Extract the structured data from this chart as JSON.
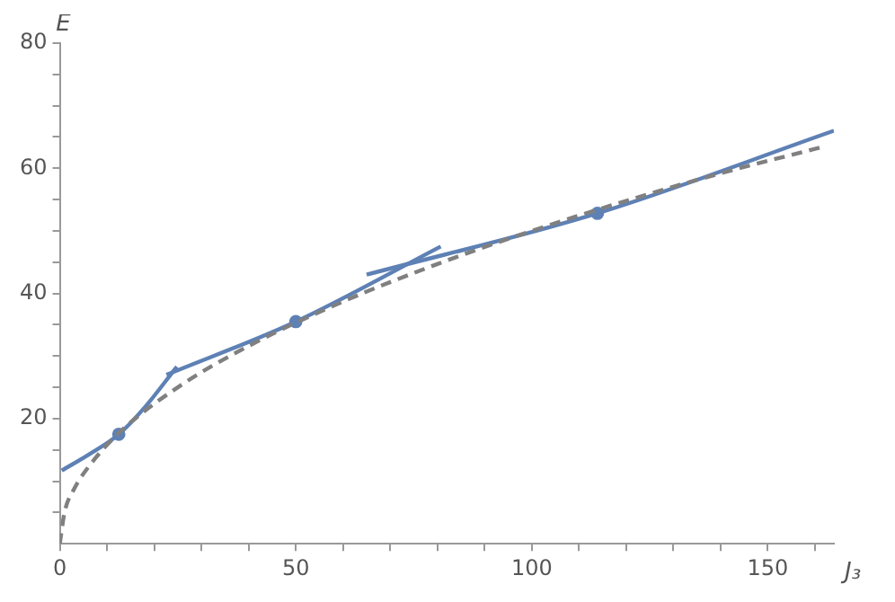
{
  "chart_data": {
    "type": "line",
    "xlabel": "J₃",
    "ylabel": "E",
    "xlim": [
      0,
      164
    ],
    "ylim": [
      0,
      80
    ],
    "xticks": [
      0,
      {
        "value": 10,
        "label": null
      },
      {
        "value": 20,
        "label": null
      },
      {
        "value": 30,
        "label": null
      },
      {
        "value": 40,
        "label": null
      },
      50,
      {
        "value": 60,
        "label": null
      },
      {
        "value": 70,
        "label": null
      },
      {
        "value": 80,
        "label": null
      },
      {
        "value": 90,
        "label": null
      },
      100,
      {
        "value": 110,
        "label": null
      },
      {
        "value": 120,
        "label": null
      },
      {
        "value": 130,
        "label": null
      },
      {
        "value": 140,
        "label": null
      },
      150,
      {
        "value": 160,
        "label": null
      }
    ],
    "yticks": [
      {
        "value": 5,
        "label": null
      },
      {
        "value": 10,
        "label": null
      },
      {
        "value": 15,
        "label": null
      },
      20,
      {
        "value": 25,
        "label": null
      },
      {
        "value": 30,
        "label": null
      },
      {
        "value": 35,
        "label": null
      },
      40,
      {
        "value": 45,
        "label": null
      },
      {
        "value": 50,
        "label": null
      },
      {
        "value": 55,
        "label": null
      },
      60,
      {
        "value": 65,
        "label": null
      },
      {
        "value": 70,
        "label": null
      },
      {
        "value": 75,
        "label": null
      },
      80
    ],
    "grid": false,
    "legend": false,
    "series": [
      {
        "type": "line",
        "color": "#808080",
        "line_style": "dashed",
        "marker": "none",
        "x": [
          0,
          1,
          3,
          6,
          12.5,
          25,
          40,
          60,
          80,
          100,
          120,
          140,
          161
        ],
        "values": [
          0,
          5,
          8.7,
          12.2,
          17.7,
          25,
          31.6,
          38.7,
          44.7,
          50,
          54.8,
          59.2,
          63.3
        ]
      },
      {
        "type": "line",
        "color": "#5e81b5",
        "line_style": "solid",
        "marker": "none",
        "x": [
          0.4,
          6,
          12.5,
          18,
          24.8
        ],
        "values": [
          11.7,
          14.2,
          17.5,
          21.8,
          28.3
        ]
      },
      {
        "type": "line",
        "color": "#5e81b5",
        "line_style": "solid",
        "marker": "none",
        "x": [
          22.6,
          50,
          80.7
        ],
        "values": [
          27,
          35.5,
          47.5
        ]
      },
      {
        "type": "line",
        "color": "#5e81b5",
        "line_style": "solid",
        "marker": "none",
        "x": [
          65,
          113.9,
          164
        ],
        "values": [
          43,
          52.8,
          66
        ]
      },
      {
        "type": "scatter",
        "color": "#5e81b5",
        "marker": "circle",
        "x": [
          12.5,
          50,
          113.9
        ],
        "values": [
          17.5,
          35.5,
          52.8
        ]
      }
    ]
  }
}
